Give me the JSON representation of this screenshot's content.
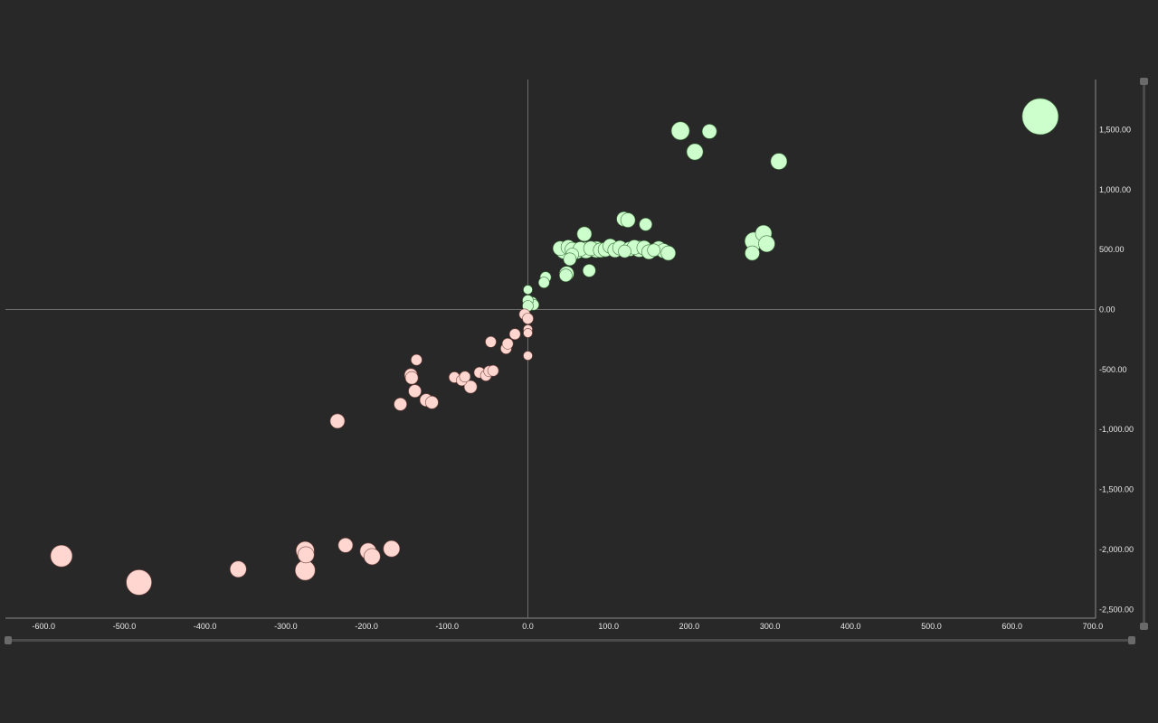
{
  "colors": {
    "background": "#282828",
    "positive": "#ccffcc",
    "negative": "#ffd6d0",
    "axis": "#8a8a8a",
    "text": "#e8e8e8"
  },
  "chart_data": {
    "type": "scatter",
    "title": "",
    "xlabel": "",
    "ylabel": "",
    "xlim": [
      -650,
      700
    ],
    "ylim": [
      -2570,
      1900
    ],
    "x_ticks": [
      "-600.0",
      "-500.0",
      "-400.0",
      "-300.0",
      "-200.0",
      "-100.0",
      "0.0",
      "100.0",
      "200.0",
      "300.0",
      "400.0",
      "500.0",
      "600.0",
      "700.0"
    ],
    "y_ticks": [
      "1,500.00",
      "1,000.00",
      "500.00",
      "0.00",
      "-500.00",
      "-1,000.00",
      "-1,500.00",
      "-2,000.00",
      "-2,500.00"
    ],
    "y_axis_position": "right",
    "grid": false,
    "series": [
      {
        "color": "#ccffcc",
        "points": [
          [
            635,
            1610,
            20
          ],
          [
            189,
            1490,
            10
          ],
          [
            225,
            1485,
            8
          ],
          [
            207,
            1315,
            9
          ],
          [
            311,
            1235,
            9
          ],
          [
            119,
            755,
            8
          ],
          [
            124,
            745,
            8
          ],
          [
            146,
            710,
            7
          ],
          [
            292,
            635,
            9
          ],
          [
            280,
            570,
            10
          ],
          [
            296,
            548,
            9
          ],
          [
            278,
            470,
            8
          ],
          [
            70,
            630,
            8
          ],
          [
            40,
            510,
            8
          ],
          [
            45,
            490,
            9
          ],
          [
            50,
            520,
            8
          ],
          [
            55,
            500,
            8
          ],
          [
            60,
            490,
            9
          ],
          [
            65,
            505,
            8
          ],
          [
            72,
            495,
            9
          ],
          [
            78,
            510,
            8
          ],
          [
            85,
            500,
            9
          ],
          [
            90,
            495,
            8
          ],
          [
            96,
            500,
            8
          ],
          [
            102,
            530,
            8
          ],
          [
            108,
            495,
            8
          ],
          [
            114,
            515,
            8
          ],
          [
            120,
            485,
            7
          ],
          [
            126,
            505,
            8
          ],
          [
            132,
            520,
            8
          ],
          [
            138,
            505,
            9
          ],
          [
            144,
            515,
            8
          ],
          [
            150,
            480,
            8
          ],
          [
            156,
            495,
            7
          ],
          [
            162,
            510,
            8
          ],
          [
            168,
            490,
            8
          ],
          [
            174,
            470,
            8
          ],
          [
            55,
            460,
            7
          ],
          [
            52,
            420,
            7
          ],
          [
            48,
            300,
            8
          ],
          [
            47,
            285,
            7
          ],
          [
            76,
            325,
            7
          ],
          [
            22,
            270,
            6
          ],
          [
            20,
            225,
            6
          ],
          [
            5,
            60,
            6
          ],
          [
            7,
            40,
            6
          ],
          [
            0,
            165,
            5
          ],
          [
            0,
            75,
            6
          ],
          [
            0,
            30,
            6
          ]
        ]
      },
      {
        "color": "#ffd6d0",
        "points": [
          [
            -578,
            -2055,
            12
          ],
          [
            -482,
            -2275,
            14
          ],
          [
            -359,
            -2165,
            9
          ],
          [
            -276,
            -2010,
            10
          ],
          [
            -275,
            -2045,
            9
          ],
          [
            -276,
            -2175,
            11
          ],
          [
            -226,
            -1965,
            8
          ],
          [
            -198,
            -2015,
            9
          ],
          [
            -193,
            -2060,
            9
          ],
          [
            -169,
            -1995,
            9
          ],
          [
            -236,
            -930,
            8
          ],
          [
            -138,
            -420,
            6
          ],
          [
            -145,
            -545,
            7
          ],
          [
            -144,
            -570,
            7
          ],
          [
            -140,
            -680,
            7
          ],
          [
            -126,
            -755,
            7
          ],
          [
            -119,
            -775,
            7
          ],
          [
            -158,
            -790,
            7
          ],
          [
            -91,
            -565,
            6
          ],
          [
            -82,
            -590,
            6
          ],
          [
            -78,
            -560,
            6
          ],
          [
            -71,
            -645,
            7
          ],
          [
            -60,
            -525,
            6
          ],
          [
            -52,
            -550,
            6
          ],
          [
            -48,
            -515,
            6
          ],
          [
            -43,
            -510,
            6
          ],
          [
            -46,
            -270,
            6
          ],
          [
            -27,
            -325,
            6
          ],
          [
            -25,
            -285,
            6
          ],
          [
            -16,
            -205,
            6
          ],
          [
            -4,
            -40,
            6
          ],
          [
            0,
            -75,
            6
          ],
          [
            0,
            -165,
            5
          ],
          [
            0,
            -195,
            5
          ],
          [
            0,
            -385,
            5
          ]
        ]
      }
    ]
  }
}
